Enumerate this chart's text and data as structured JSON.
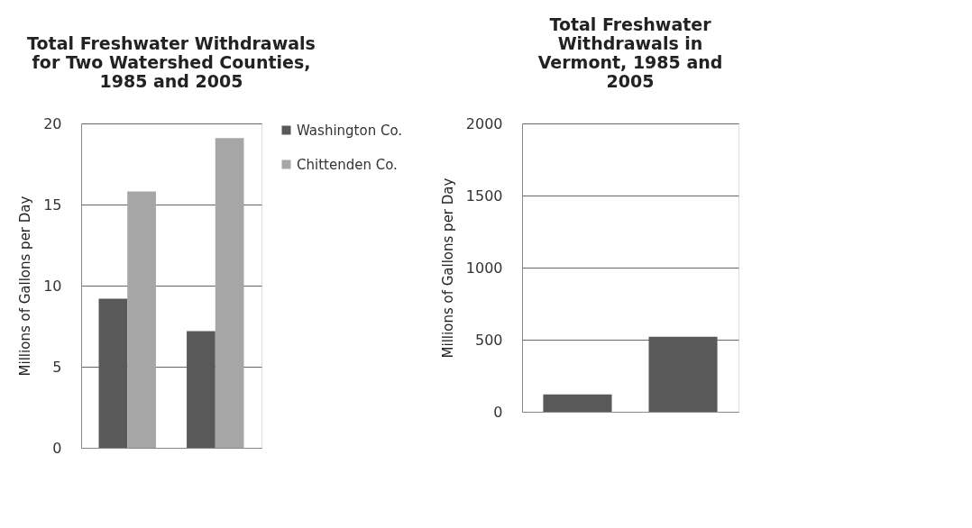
{
  "chart_data": [
    {
      "type": "bar",
      "title": "Total Freshwater Withdrawals for Two Watershed Counties, 1985 and 2005",
      "ylabel": "Millions of Gallons per Day",
      "categories": [
        null,
        null
      ],
      "series": [
        {
          "name": "Washington Co.",
          "color": "#595959",
          "values": [
            9.2,
            7.2
          ]
        },
        {
          "name": "Chittenden Co.",
          "color": "#a6a6a6",
          "values": [
            15.8,
            19.1
          ]
        }
      ],
      "ylim": [
        0,
        20
      ],
      "yticks": [
        0,
        5,
        10,
        15,
        20
      ],
      "grid": "y",
      "legend": "right"
    },
    {
      "type": "bar",
      "title": "Total Freshwater Withdrawals in Vermont, 1985 and 2005",
      "ylabel": "Millions of Gallons per Day",
      "categories": [
        null,
        null
      ],
      "series": [
        {
          "color": "#595959",
          "values": [
            120,
            520
          ]
        }
      ],
      "ylim": [
        0,
        2000
      ],
      "yticks": [
        0,
        500,
        1000,
        1500,
        2000
      ],
      "grid": "y"
    }
  ]
}
